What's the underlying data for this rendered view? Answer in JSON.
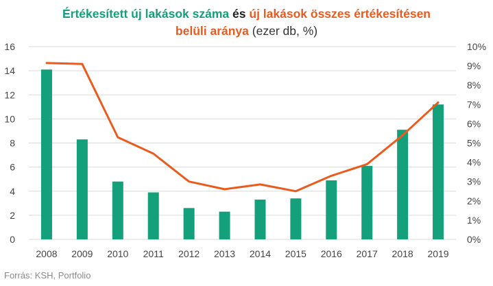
{
  "title": {
    "part1": "Értékesített új lakások száma",
    "part2": "és",
    "part3": "új lakások összes értékesítésen",
    "part4": "belüli aránya",
    "part5": "(ezer db, %)"
  },
  "source": "Forrás: KSH, Portfolio",
  "colors": {
    "bar": "#13a07a",
    "line": "#ea5b1d",
    "grid": "#d9d9d9",
    "axis": "#444444"
  },
  "chart_data": {
    "type": "bar",
    "categories": [
      "2008",
      "2009",
      "2010",
      "2011",
      "2012",
      "2013",
      "2014",
      "2015",
      "2016",
      "2017",
      "2018",
      "2019"
    ],
    "series": [
      {
        "type": "bar",
        "axis": "left",
        "values": [
          14.1,
          8.3,
          4.8,
          3.9,
          2.6,
          2.3,
          3.3,
          3.4,
          4.9,
          6.1,
          9.1,
          11.2
        ]
      },
      {
        "type": "line",
        "axis": "right",
        "values": [
          9.15,
          9.1,
          5.3,
          4.45,
          3.0,
          2.6,
          2.85,
          2.5,
          3.3,
          3.9,
          5.4,
          7.1
        ]
      }
    ],
    "left_axis": {
      "ylim": [
        0,
        16
      ],
      "ticks": [
        "0",
        "2",
        "4",
        "6",
        "8",
        "10",
        "12",
        "14",
        "16"
      ]
    },
    "right_axis": {
      "ylim": [
        0,
        10
      ],
      "ticks": [
        "0%",
        "1%",
        "2%",
        "3%",
        "4%",
        "5%",
        "6%",
        "7%",
        "8%",
        "9%",
        "10%"
      ]
    },
    "grid": true
  }
}
